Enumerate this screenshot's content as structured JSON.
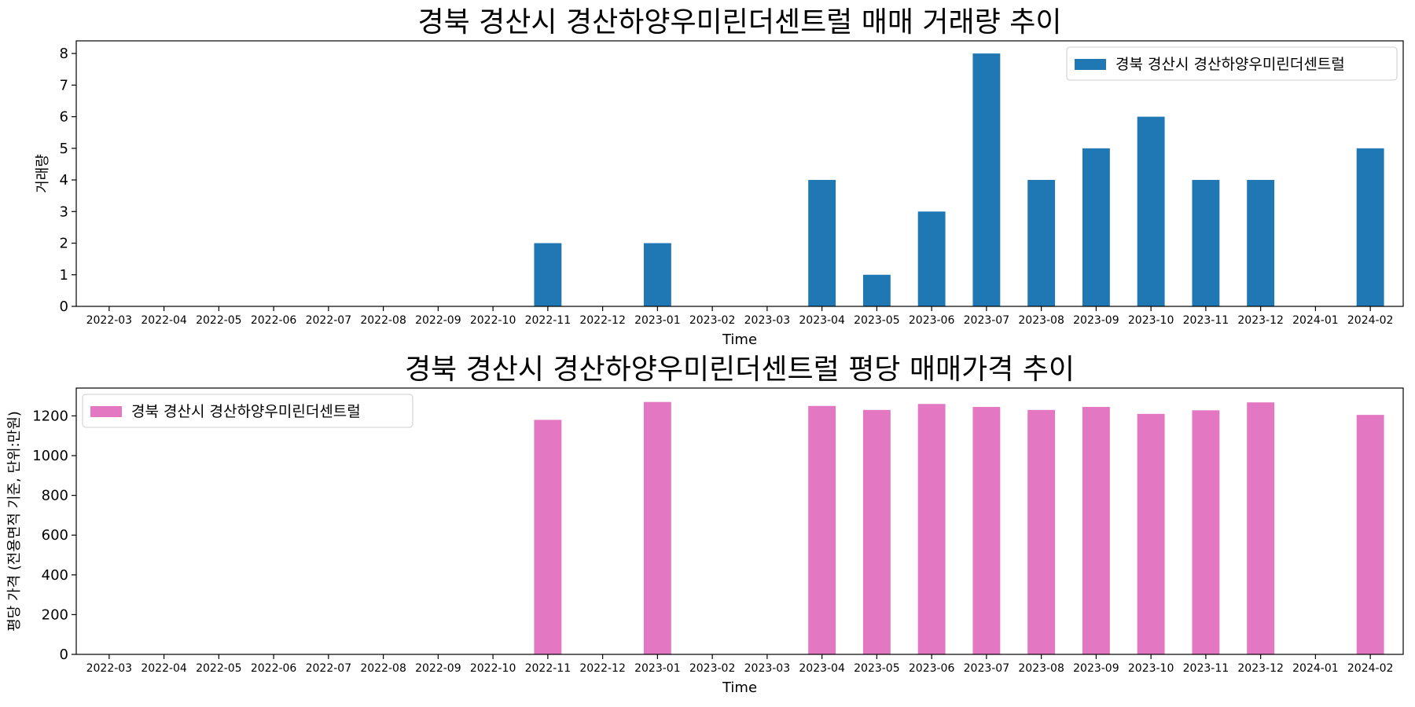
{
  "chart_data": [
    {
      "type": "bar",
      "title": "경북 경산시 경산하양우미린더센트럴 매매 거래량 추이",
      "xlabel": "Time",
      "ylabel": "거래량",
      "ylim": [
        0,
        8.4
      ],
      "yticks": [
        0,
        1,
        2,
        3,
        4,
        5,
        6,
        7,
        8
      ],
      "legend_position": "top-right",
      "grid": false,
      "categories": [
        "2022-03",
        "2022-04",
        "2022-05",
        "2022-06",
        "2022-07",
        "2022-08",
        "2022-09",
        "2022-10",
        "2022-11",
        "2022-12",
        "2023-01",
        "2023-02",
        "2023-03",
        "2023-04",
        "2023-05",
        "2023-06",
        "2023-07",
        "2023-08",
        "2023-09",
        "2023-10",
        "2023-11",
        "2023-12",
        "2024-01",
        "2024-02"
      ],
      "series": [
        {
          "name": "경북 경산시 경산하양우미린더센트럴",
          "color": "#1f77b4",
          "values": [
            0,
            0,
            0,
            0,
            0,
            0,
            0,
            0,
            2,
            0,
            2,
            0,
            0,
            4,
            1,
            3,
            8,
            4,
            5,
            6,
            4,
            4,
            0,
            5
          ]
        }
      ]
    },
    {
      "type": "bar",
      "title": "경북 경산시 경산하양우미린더센트럴 평당 매매가격 추이",
      "xlabel": "Time",
      "ylabel": "평당 가격 (전용면적 기준, 단위:만원)",
      "ylim": [
        0,
        1340
      ],
      "yticks": [
        0,
        200,
        400,
        600,
        800,
        1000,
        1200
      ],
      "legend_position": "top-left",
      "grid": false,
      "categories": [
        "2022-03",
        "2022-04",
        "2022-05",
        "2022-06",
        "2022-07",
        "2022-08",
        "2022-09",
        "2022-10",
        "2022-11",
        "2022-12",
        "2023-01",
        "2023-02",
        "2023-03",
        "2023-04",
        "2023-05",
        "2023-06",
        "2023-07",
        "2023-08",
        "2023-09",
        "2023-10",
        "2023-11",
        "2023-12",
        "2024-01",
        "2024-02"
      ],
      "series": [
        {
          "name": "경북 경산시 경산하양우미린더센트럴",
          "color": "#e377c2",
          "values": [
            0,
            0,
            0,
            0,
            0,
            0,
            0,
            0,
            1180,
            0,
            1270,
            0,
            0,
            1250,
            1230,
            1260,
            1245,
            1230,
            1245,
            1210,
            1228,
            1268,
            0,
            1205
          ]
        }
      ]
    }
  ]
}
